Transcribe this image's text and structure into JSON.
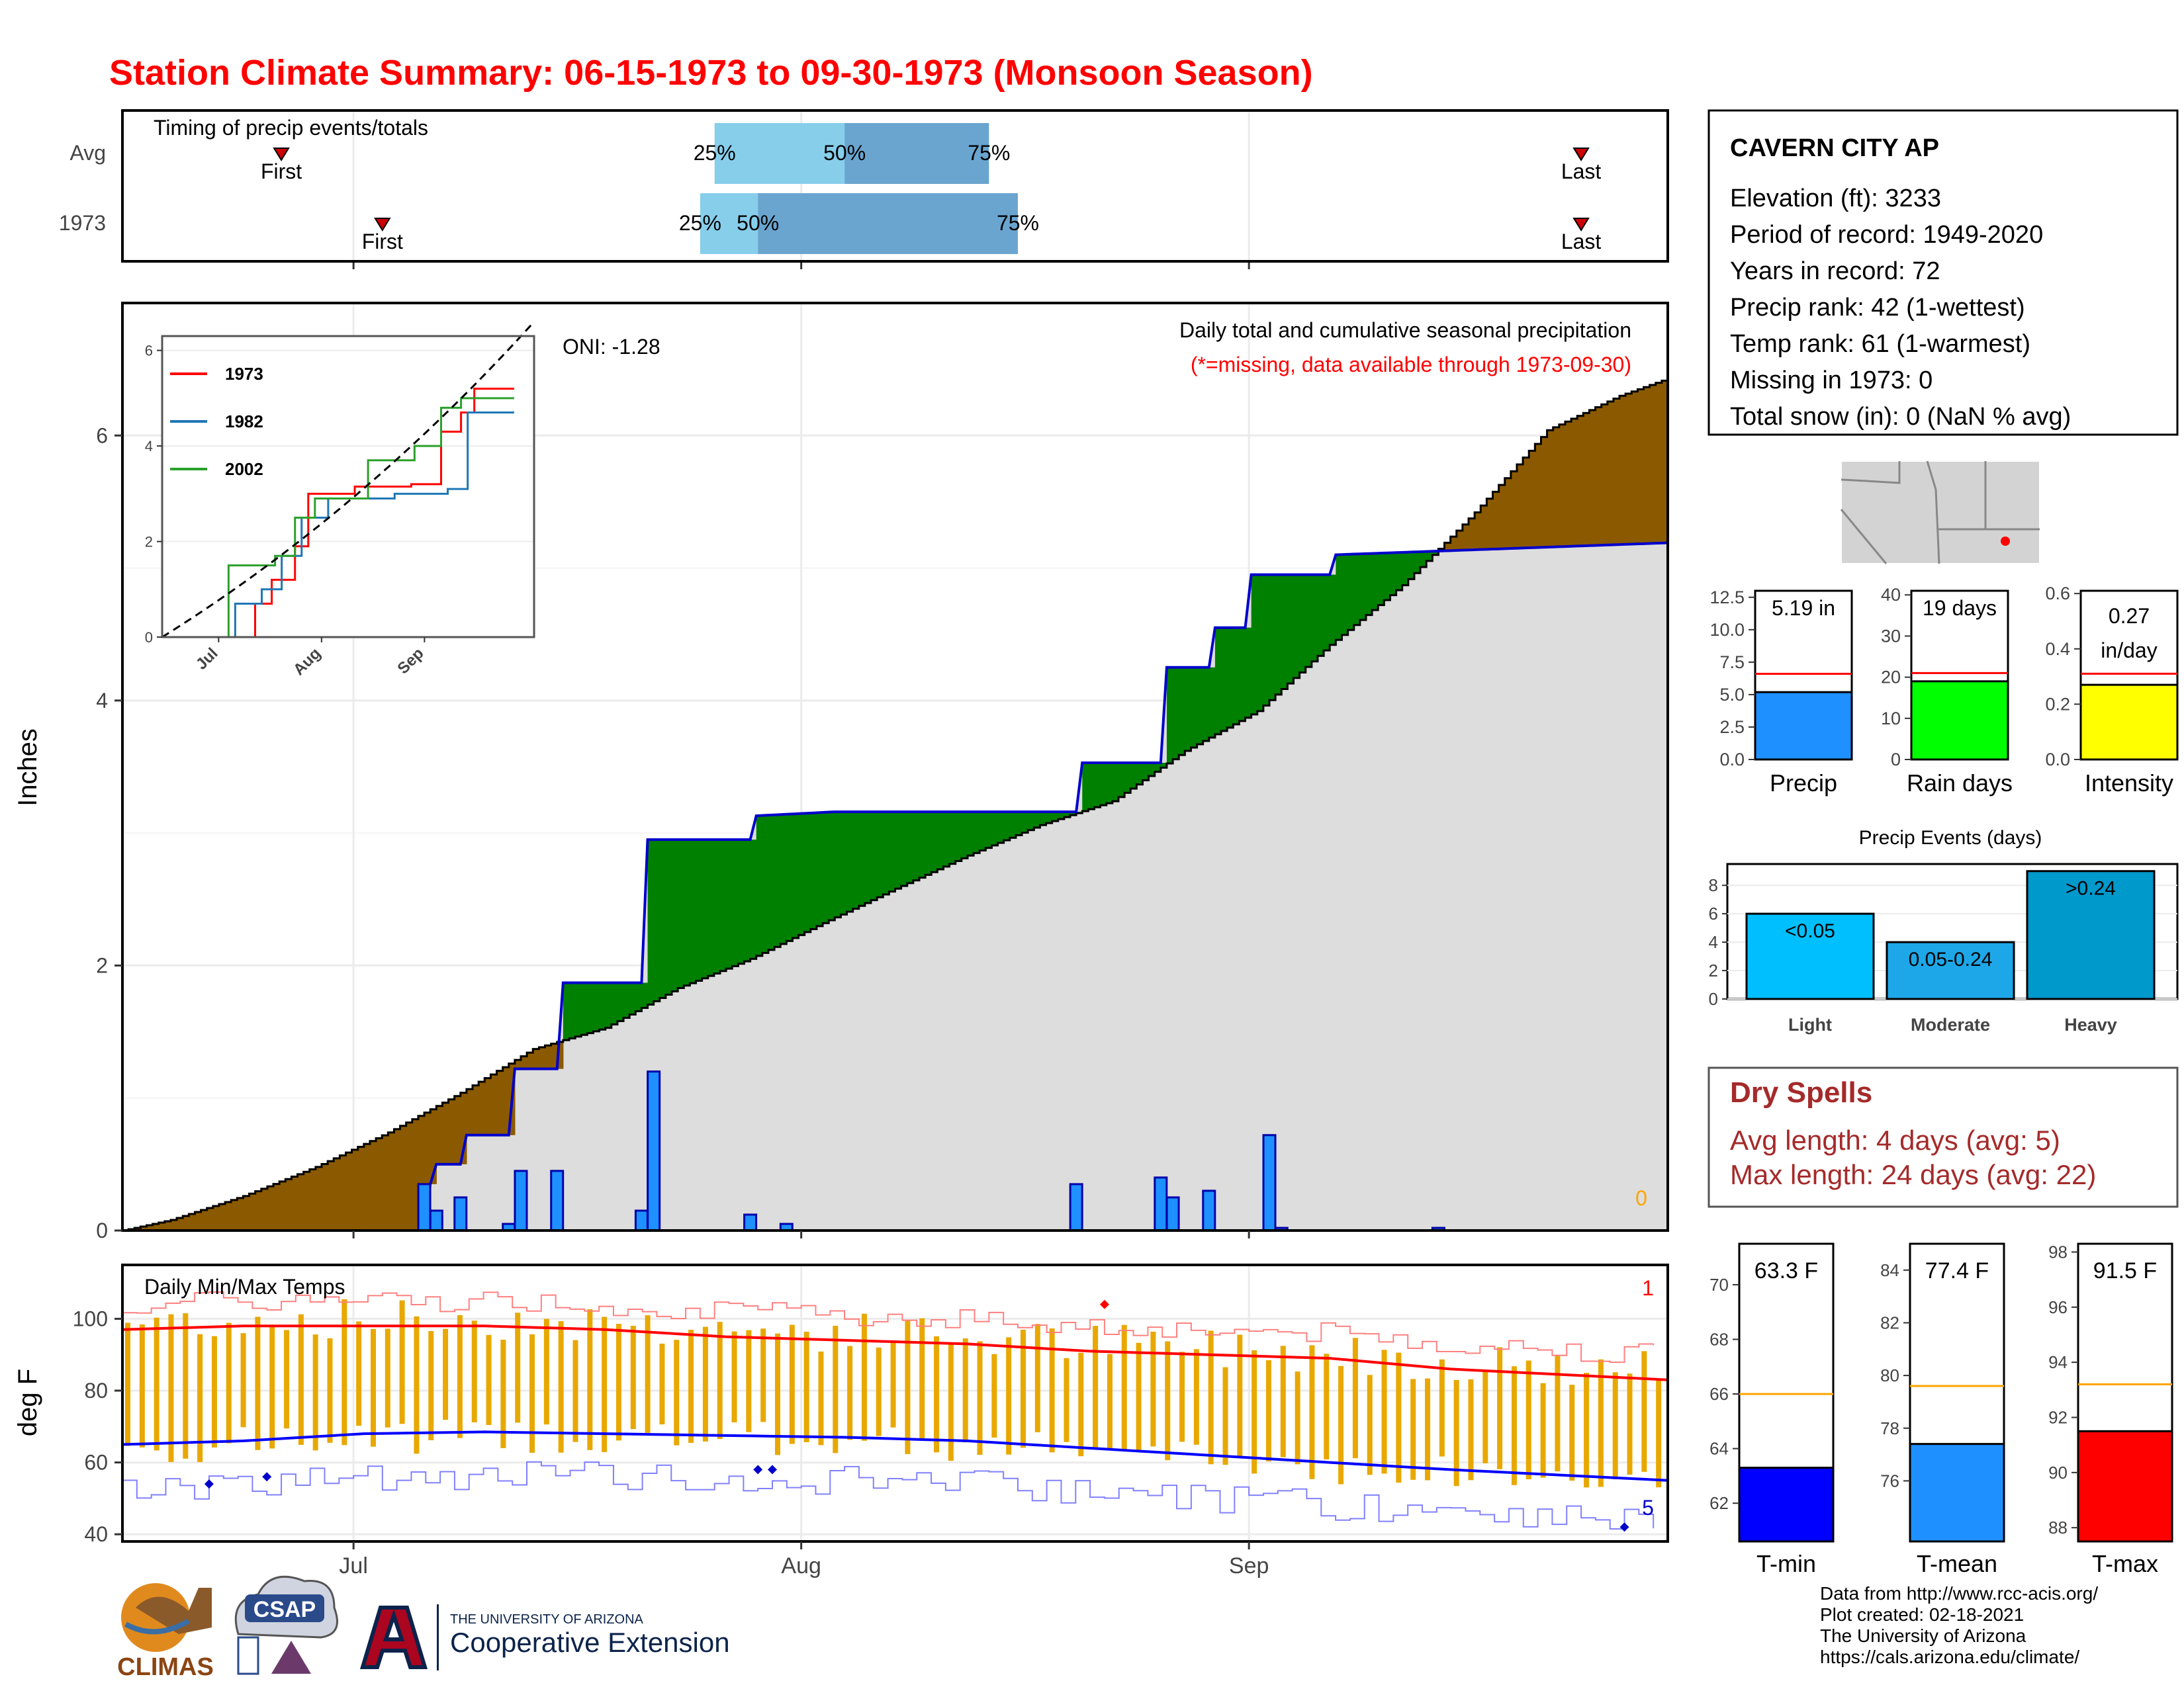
{
  "title": "Station Climate Summary: 06-15-1973 to 09-30-1973 (Monsoon Season)",
  "colors": {
    "title": "#ff0000",
    "cum_below": "#8b5a00",
    "cum_above": "#008000",
    "daily_bar": "#1e90ff",
    "temp_bar": "#e8a800",
    "tmax_line": "#ff0000",
    "tmin_line": "#0000ff",
    "dry_spells": "#a52a2a"
  },
  "timing": {
    "title": "Timing of precip events/totals",
    "rows": [
      {
        "label": "Avg",
        "first_label": "First",
        "last_label": "Last",
        "p25": "25%",
        "p50": "50%",
        "p75": "75%"
      },
      {
        "label": "1973",
        "first_label": "First",
        "last_label": "Last",
        "p25": "25%",
        "p50": "50%",
        "p75": "75%"
      }
    ]
  },
  "main": {
    "title": "Daily total and cumulative seasonal precipitation",
    "subtitle": "(*=missing, data available through 1973-09-30)",
    "oni": "ONI: -1.28",
    "ylabel": "Inches",
    "yticks": [
      "0",
      "2",
      "4",
      "6"
    ],
    "missing_count": "0"
  },
  "inset": {
    "legend": [
      "1973",
      "1982",
      "2002"
    ],
    "yticks": [
      "0",
      "2",
      "4",
      "6"
    ],
    "xticks": [
      "Jul",
      "Aug",
      "Sep"
    ]
  },
  "temps": {
    "title": "Daily Min/Max Temps",
    "ylabel": "deg F",
    "yticks": [
      "40",
      "60",
      "80",
      "100"
    ],
    "xticks": [
      "Jul",
      "Aug",
      "Sep"
    ],
    "tmax_missing": "1",
    "tmin_missing": "5"
  },
  "station": {
    "name": "CAVERN CITY AP",
    "lines": [
      "Elevation (ft): 3233",
      "Period of record: 1949-2020",
      "Years in record: 72",
      "Precip rank: 42 (1-wettest)",
      "Temp rank: 61 (1-warmest)",
      "Missing in 1973: 0",
      "Total snow (in): 0 (NaN % avg)"
    ]
  },
  "mini": [
    {
      "label": "Precip",
      "value_text": "5.19 in",
      "yticks": [
        "0.0",
        "2.5",
        "5.0",
        "7.5",
        "10.0",
        "12.5"
      ],
      "value": 5.19,
      "avg": 6.6,
      "max": 13,
      "color": "#1e90ff"
    },
    {
      "label": "Rain days",
      "value_text": "19 days",
      "yticks": [
        "0",
        "10",
        "20",
        "30",
        "40"
      ],
      "value": 19,
      "avg": 21,
      "max": 41,
      "color": "#00ff00"
    },
    {
      "label": "Intensity",
      "value_text_1": "0.27",
      "value_text_2": "in/day",
      "yticks": [
        "0.0",
        "0.2",
        "0.4",
        "0.6"
      ],
      "value": 0.27,
      "avg": 0.31,
      "max": 0.61,
      "color": "#ffff00"
    }
  ],
  "events": {
    "title": "Precip Events (days)",
    "yticks": [
      "0",
      "2",
      "4",
      "6",
      "8"
    ],
    "bars": [
      {
        "category": "Light",
        "label": "<0.05",
        "value": 6,
        "color": "#00bfff"
      },
      {
        "category": "Moderate",
        "label": "0.05-0.24",
        "value": 4,
        "color": "#1ea7e8"
      },
      {
        "category": "Heavy",
        "label": ">0.24",
        "value": 9,
        "color": "#0099cc"
      }
    ]
  },
  "dry_spells": {
    "title": "Dry Spells",
    "avg_line": "Avg length: 4 days (avg: 5)",
    "max_line": "Max length: 24 days (avg: 22)"
  },
  "temp_bars": [
    {
      "label": "T-min",
      "value_text": "63.3 F",
      "value": 63.3,
      "avg": 66.0,
      "min": 60.6,
      "max": 71.5,
      "yticks": [
        "62",
        "64",
        "66",
        "68",
        "70"
      ],
      "color": "#0000ff"
    },
    {
      "label": "T-mean",
      "value_text": "77.4 F",
      "value": 77.4,
      "avg": 79.6,
      "min": 73.7,
      "max": 85.0,
      "yticks": [
        "76",
        "78",
        "80",
        "82",
        "84"
      ],
      "color": "#1e90ff"
    },
    {
      "label": "T-max",
      "value_text": "91.5 F",
      "value": 91.5,
      "avg": 93.2,
      "min": 87.5,
      "max": 98.3,
      "yticks": [
        "88",
        "90",
        "92",
        "94",
        "96",
        "98"
      ],
      "color": "#ff0000"
    }
  ],
  "footer": {
    "lines": [
      "Data from http://www.rcc-acis.org/",
      "Plot created: 02-18-2021",
      "The University of Arizona",
      "https://cals.arizona.edu/climate/"
    ],
    "logos": [
      "CLIMAS",
      "CSAP",
      "THE UNIVERSITY OF ARIZONA",
      "Cooperative Extension"
    ]
  },
  "chart_data": [
    {
      "type": "bar",
      "name": "timing",
      "categories": [
        "Avg",
        "1973"
      ],
      "series": [
        {
          "row": "Avg",
          "first": "06-26",
          "p25": "07-26",
          "p50": "08-04",
          "p75": "08-14",
          "last": "09-24"
        },
        {
          "row": "1973",
          "first": "07-03",
          "p25": "07-25",
          "p50": "07-29",
          "p75": "08-16",
          "last": "09-24"
        }
      ]
    },
    {
      "type": "area",
      "name": "cumulative precipitation",
      "x_start": "1973-06-15",
      "x_end": "1973-09-30",
      "ylim": [
        0,
        7.0
      ],
      "avg_cumulative": [
        [
          0,
          0
        ],
        [
          4,
          0.08
        ],
        [
          10,
          0.26
        ],
        [
          16,
          0.48
        ],
        [
          22,
          0.74
        ],
        [
          28,
          1.04
        ],
        [
          34,
          1.37
        ],
        [
          40,
          1.53
        ],
        [
          46,
          1.83
        ],
        [
          52,
          2.05
        ],
        [
          58,
          2.32
        ],
        [
          64,
          2.58
        ],
        [
          70,
          2.83
        ],
        [
          76,
          3.06
        ],
        [
          82,
          3.24
        ],
        [
          88,
          3.62
        ],
        [
          94,
          3.92
        ],
        [
          100,
          4.42
        ],
        [
          106,
          4.87
        ],
        [
          112,
          5.42
        ],
        [
          118,
          6.04
        ],
        [
          124,
          6.3
        ],
        [
          128,
          6.43
        ]
      ],
      "observed_cumulative": [
        [
          0,
          0
        ],
        [
          25,
          0
        ],
        [
          25.5,
          0.35
        ],
        [
          26,
          0.5
        ],
        [
          28,
          0.5
        ],
        [
          28.5,
          0.72
        ],
        [
          32,
          0.72
        ],
        [
          32.5,
          1.22
        ],
        [
          36,
          1.22
        ],
        [
          36.5,
          1.87
        ],
        [
          43,
          1.87
        ],
        [
          43.5,
          2.95
        ],
        [
          52,
          2.95
        ],
        [
          52.5,
          3.13
        ],
        [
          59,
          3.16
        ],
        [
          79,
          3.16
        ],
        [
          79.5,
          3.53
        ],
        [
          86,
          3.53
        ],
        [
          86.5,
          4.25
        ],
        [
          90,
          4.25
        ],
        [
          90.5,
          4.55
        ],
        [
          93,
          4.55
        ],
        [
          93.5,
          4.95
        ],
        [
          100,
          4.95
        ],
        [
          100.5,
          5.1
        ],
        [
          128,
          5.19
        ]
      ],
      "daily_precip": [
        [
          25,
          0.35
        ],
        [
          26,
          0.15
        ],
        [
          28,
          0.25
        ],
        [
          32,
          0.05
        ],
        [
          33,
          0.45
        ],
        [
          36,
          0.45
        ],
        [
          43,
          0.15
        ],
        [
          44,
          1.2
        ],
        [
          52,
          0.12
        ],
        [
          55,
          0.05
        ],
        [
          79,
          0.35
        ],
        [
          86,
          0.4
        ],
        [
          87,
          0.25
        ],
        [
          90,
          0.3
        ],
        [
          95,
          0.72
        ],
        [
          96,
          0.02
        ],
        [
          109,
          0.02
        ]
      ],
      "ylabel": "Inches"
    },
    {
      "type": "line",
      "name": "inset analog years",
      "ylim": [
        0,
        6.2
      ],
      "series": [
        {
          "name": "1973",
          "values": [
            [
              0,
              0
            ],
            [
              25,
              0
            ],
            [
              28,
              0.7
            ],
            [
              33,
              1.2
            ],
            [
              40,
              1.9
            ],
            [
              44,
              3.0
            ],
            [
              58,
              3.15
            ],
            [
              75,
              3.2
            ],
            [
              84,
              4.3
            ],
            [
              90,
              4.7
            ],
            [
              94,
              5.2
            ],
            [
              106,
              5.2
            ]
          ]
        },
        {
          "name": "1982",
          "values": [
            [
              0,
              0
            ],
            [
              20,
              0
            ],
            [
              22,
              0.7
            ],
            [
              30,
              1.0
            ],
            [
              36,
              1.7
            ],
            [
              42,
              2.5
            ],
            [
              50,
              2.9
            ],
            [
              70,
              3.0
            ],
            [
              86,
              3.1
            ],
            [
              92,
              4.7
            ],
            [
              106,
              4.7
            ]
          ]
        },
        {
          "name": "2002",
          "values": [
            [
              0,
              0
            ],
            [
              18,
              0
            ],
            [
              20,
              1.5
            ],
            [
              34,
              1.7
            ],
            [
              40,
              2.5
            ],
            [
              46,
              2.9
            ],
            [
              62,
              3.7
            ],
            [
              76,
              4.0
            ],
            [
              84,
              4.8
            ],
            [
              90,
              5.0
            ],
            [
              106,
              5.0
            ]
          ]
        }
      ]
    },
    {
      "type": "bar",
      "name": "daily temperatures",
      "ylim": [
        38,
        115
      ],
      "tmax_avg": [
        [
          0,
          97
        ],
        [
          10,
          98
        ],
        [
          20,
          98
        ],
        [
          30,
          98
        ],
        [
          40,
          97
        ],
        [
          50,
          95
        ],
        [
          60,
          94
        ],
        [
          70,
          93
        ],
        [
          80,
          91
        ],
        [
          90,
          90
        ],
        [
          100,
          89
        ],
        [
          110,
          86
        ],
        [
          128,
          83
        ]
      ],
      "tmin_avg": [
        [
          0,
          65
        ],
        [
          10,
          66
        ],
        [
          20,
          68
        ],
        [
          30,
          68.5
        ],
        [
          40,
          68
        ],
        [
          50,
          67.5
        ],
        [
          60,
          67
        ],
        [
          70,
          66
        ],
        [
          80,
          64
        ],
        [
          90,
          62
        ],
        [
          100,
          60
        ],
        [
          110,
          58
        ],
        [
          128,
          55
        ]
      ]
    },
    {
      "type": "bar",
      "name": "precip events",
      "categories": [
        "Light",
        "Moderate",
        "Heavy"
      ],
      "values": [
        6,
        4,
        9
      ]
    },
    {
      "type": "bar",
      "name": "seasonal temperatures",
      "categories": [
        "T-min",
        "T-mean",
        "T-max"
      ],
      "values": [
        63.3,
        77.4,
        91.5
      ]
    }
  ]
}
